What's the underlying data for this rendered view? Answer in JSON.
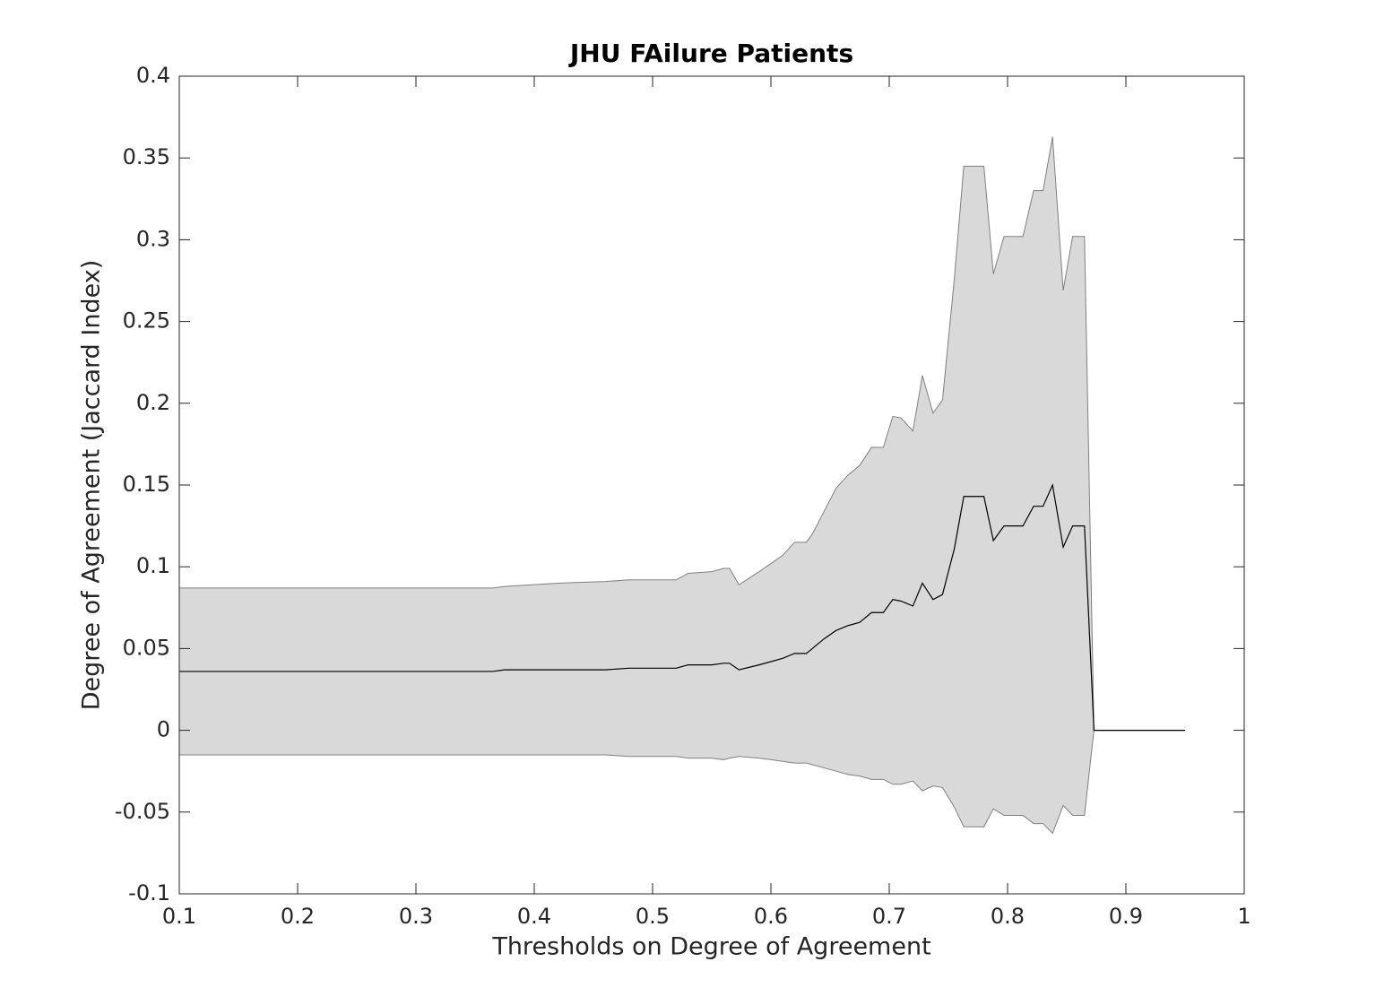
{
  "chart_data": {
    "type": "band-line",
    "title": "JHU FAilure Patients",
    "x_label": "Thresholds on Degree of Agreement",
    "y_label": "Degree of Agreement (Jaccard Index)",
    "x": [
      0.1,
      0.365,
      0.375,
      0.42,
      0.46,
      0.48,
      0.52,
      0.53,
      0.55,
      0.56,
      0.565,
      0.573,
      0.59,
      0.6,
      0.61,
      0.62,
      0.63,
      0.635,
      0.645,
      0.655,
      0.665,
      0.675,
      0.685,
      0.695,
      0.703,
      0.71,
      0.72,
      0.728,
      0.737,
      0.745,
      0.755,
      0.763,
      0.78,
      0.788,
      0.797,
      0.813,
      0.822,
      0.83,
      0.838,
      0.847,
      0.855,
      0.865,
      0.873,
      0.95
    ],
    "band": {
      "color": "#d9d9d9",
      "edge_color": "#808080",
      "upper": [
        0.087,
        0.087,
        0.088,
        0.09,
        0.091,
        0.092,
        0.092,
        0.096,
        0.097,
        0.099,
        0.099,
        0.089,
        0.097,
        0.102,
        0.107,
        0.115,
        0.115,
        0.12,
        0.134,
        0.148,
        0.156,
        0.162,
        0.173,
        0.173,
        0.192,
        0.191,
        0.183,
        0.217,
        0.194,
        0.202,
        0.276,
        0.345,
        0.345,
        0.279,
        0.302,
        0.302,
        0.33,
        0.33,
        0.363,
        0.269,
        0.302,
        0.302,
        0,
        0
      ],
      "lower": [
        -0.015,
        -0.015,
        -0.015,
        -0.015,
        -0.015,
        -0.016,
        -0.016,
        -0.017,
        -0.017,
        -0.018,
        -0.017,
        -0.016,
        -0.017,
        -0.018,
        -0.019,
        -0.02,
        -0.02,
        -0.021,
        -0.023,
        -0.025,
        -0.027,
        -0.028,
        -0.03,
        -0.03,
        -0.033,
        -0.033,
        -0.031,
        -0.037,
        -0.034,
        -0.035,
        -0.047,
        -0.059,
        -0.059,
        -0.048,
        -0.052,
        -0.052,
        -0.057,
        -0.057,
        -0.063,
        -0.046,
        -0.052,
        -0.052,
        0,
        0
      ]
    },
    "series": [
      {
        "color": "#000000",
        "values": [
          0.036,
          0.036,
          0.037,
          0.037,
          0.037,
          0.038,
          0.038,
          0.04,
          0.04,
          0.041,
          0.041,
          0.037,
          0.04,
          0.042,
          0.044,
          0.047,
          0.047,
          0.05,
          0.056,
          0.061,
          0.064,
          0.066,
          0.072,
          0.072,
          0.08,
          0.079,
          0.076,
          0.09,
          0.08,
          0.083,
          0.111,
          0.143,
          0.143,
          0.116,
          0.125,
          0.125,
          0.137,
          0.137,
          0.15,
          0.112,
          0.125,
          0.125,
          0,
          0
        ]
      }
    ],
    "xlim": [
      0.1,
      1
    ],
    "xticks": [
      0.1,
      0.2,
      0.3,
      0.4,
      0.5,
      0.6,
      0.7,
      0.8,
      0.9,
      1
    ],
    "ylim": [
      -0.1,
      0.4
    ],
    "yticks": [
      -0.1,
      -0.05,
      0,
      0.05,
      0.1,
      0.15,
      0.2,
      0.25,
      0.3,
      0.35,
      0.4
    ],
    "grid": false
  }
}
